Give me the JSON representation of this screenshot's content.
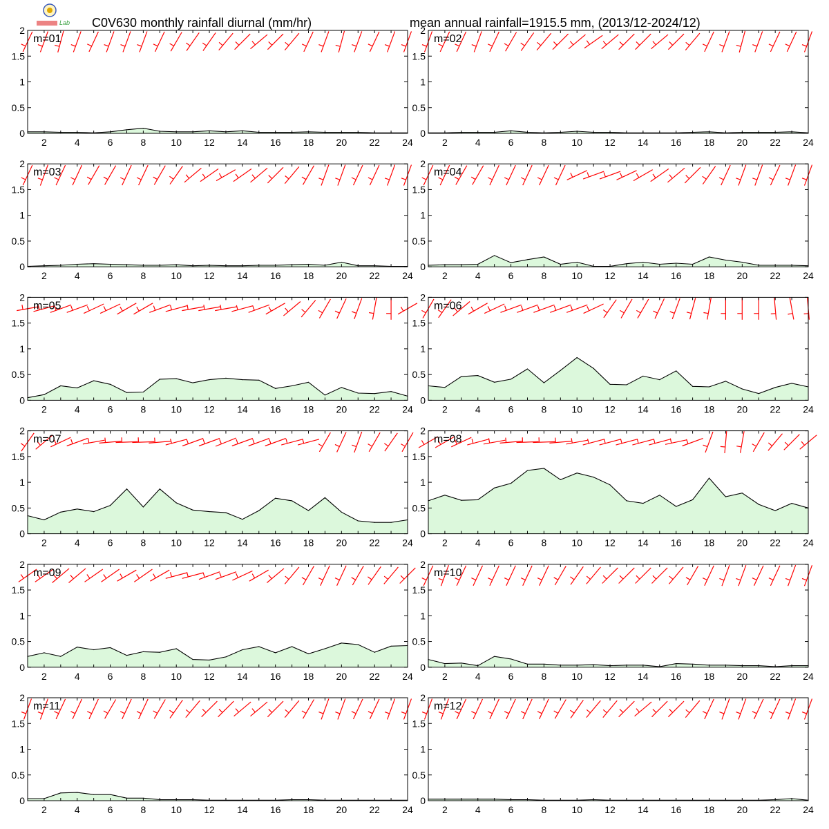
{
  "title_left": "C0V630 monthly rainfall diurnal (mm/hr)",
  "title_right": "mean annual rainfall=1915.5 mm, (2013/12-2024/12)",
  "logo": {
    "icon": "lab-seal-logo",
    "text": "Lab"
  },
  "chart_data": [
    {
      "type": "area",
      "label": "m=01",
      "x": [
        1,
        2,
        3,
        4,
        5,
        6,
        7,
        8,
        9,
        10,
        11,
        12,
        13,
        14,
        15,
        16,
        17,
        18,
        19,
        20,
        21,
        22,
        23,
        24
      ],
      "ylim": [
        0,
        2
      ],
      "values": [
        0.03,
        0.03,
        0.02,
        0.02,
        0.01,
        0.03,
        0.07,
        0.1,
        0.04,
        0.03,
        0.03,
        0.05,
        0.03,
        0.05,
        0.02,
        0.02,
        0.02,
        0.03,
        0.02,
        0.02,
        0.02,
        0.01,
        0.01,
        0.01
      ],
      "wind_dir": [
        205,
        200,
        195,
        200,
        205,
        200,
        200,
        200,
        205,
        210,
        215,
        215,
        220,
        225,
        230,
        225,
        220,
        205,
        200,
        195,
        200,
        205,
        200,
        200
      ]
    },
    {
      "type": "area",
      "label": "m=02",
      "x": [
        1,
        2,
        3,
        4,
        5,
        6,
        7,
        8,
        9,
        10,
        11,
        12,
        13,
        14,
        15,
        16,
        17,
        18,
        19,
        20,
        21,
        22,
        23,
        24
      ],
      "ylim": [
        0,
        2
      ],
      "values": [
        0.01,
        0.01,
        0.02,
        0.02,
        0.02,
        0.05,
        0.02,
        0.01,
        0.02,
        0.04,
        0.02,
        0.02,
        0.01,
        0.01,
        0.01,
        0.01,
        0.02,
        0.03,
        0.01,
        0.02,
        0.02,
        0.02,
        0.03,
        0.01
      ],
      "wind_dir": [
        200,
        205,
        205,
        200,
        205,
        210,
        215,
        220,
        225,
        230,
        235,
        230,
        225,
        225,
        230,
        225,
        220,
        205,
        200,
        195,
        200,
        205,
        205,
        200
      ]
    },
    {
      "type": "area",
      "label": "m=03",
      "x": [
        1,
        2,
        3,
        4,
        5,
        6,
        7,
        8,
        9,
        10,
        11,
        12,
        13,
        14,
        15,
        16,
        17,
        18,
        19,
        20,
        21,
        22,
        23,
        24
      ],
      "ylim": [
        0,
        2
      ],
      "values": [
        0.01,
        0.02,
        0.03,
        0.05,
        0.06,
        0.05,
        0.04,
        0.03,
        0.03,
        0.04,
        0.02,
        0.03,
        0.02,
        0.02,
        0.03,
        0.03,
        0.04,
        0.05,
        0.03,
        0.09,
        0.02,
        0.02,
        0.01,
        0.01
      ],
      "wind_dir": [
        205,
        200,
        205,
        205,
        210,
        210,
        205,
        205,
        210,
        215,
        230,
        235,
        240,
        235,
        230,
        225,
        220,
        210,
        200,
        200,
        205,
        205,
        200,
        200
      ]
    },
    {
      "type": "area",
      "label": "m=04",
      "x": [
        1,
        2,
        3,
        4,
        5,
        6,
        7,
        8,
        9,
        10,
        11,
        12,
        13,
        14,
        15,
        16,
        17,
        18,
        19,
        20,
        21,
        22,
        23,
        24
      ],
      "ylim": [
        0,
        2
      ],
      "values": [
        0.03,
        0.04,
        0.04,
        0.05,
        0.22,
        0.08,
        0.14,
        0.19,
        0.05,
        0.09,
        0.01,
        0.01,
        0.06,
        0.09,
        0.05,
        0.07,
        0.05,
        0.19,
        0.13,
        0.09,
        0.03,
        0.03,
        0.03,
        0.02
      ],
      "wind_dir": [
        205,
        205,
        210,
        210,
        205,
        205,
        205,
        205,
        205,
        245,
        250,
        250,
        245,
        240,
        235,
        230,
        225,
        215,
        205,
        200,
        200,
        205,
        200,
        200
      ]
    },
    {
      "type": "area",
      "label": "m=05",
      "x": [
        1,
        2,
        3,
        4,
        5,
        6,
        7,
        8,
        9,
        10,
        11,
        12,
        13,
        14,
        15,
        16,
        17,
        18,
        19,
        20,
        21,
        22,
        23,
        24
      ],
      "ylim": [
        0,
        2
      ],
      "values": [
        0.05,
        0.11,
        0.28,
        0.24,
        0.38,
        0.31,
        0.15,
        0.16,
        0.41,
        0.42,
        0.34,
        0.4,
        0.43,
        0.4,
        0.39,
        0.23,
        0.28,
        0.35,
        0.1,
        0.25,
        0.14,
        0.13,
        0.17,
        0.08
      ],
      "wind_dir": [
        260,
        255,
        250,
        250,
        245,
        245,
        240,
        240,
        250,
        255,
        260,
        260,
        260,
        255,
        250,
        240,
        230,
        220,
        210,
        205,
        200,
        190,
        180,
        240
      ]
    },
    {
      "type": "area",
      "label": "m=06",
      "x": [
        1,
        2,
        3,
        4,
        5,
        6,
        7,
        8,
        9,
        10,
        11,
        12,
        13,
        14,
        15,
        16,
        17,
        18,
        19,
        20,
        21,
        22,
        23,
        24
      ],
      "ylim": [
        0,
        2
      ],
      "values": [
        0.28,
        0.25,
        0.46,
        0.48,
        0.35,
        0.41,
        0.61,
        0.34,
        0.58,
        0.83,
        0.62,
        0.31,
        0.3,
        0.47,
        0.4,
        0.57,
        0.27,
        0.26,
        0.37,
        0.22,
        0.13,
        0.25,
        0.33,
        0.26
      ],
      "wind_dir": [
        210,
        215,
        230,
        240,
        245,
        250,
        250,
        250,
        250,
        250,
        245,
        215,
        210,
        210,
        205,
        200,
        195,
        190,
        180,
        180,
        180,
        175,
        170,
        175
      ]
    },
    {
      "type": "area",
      "label": "m=07",
      "x": [
        1,
        2,
        3,
        4,
        5,
        6,
        7,
        8,
        9,
        10,
        11,
        12,
        13,
        14,
        15,
        16,
        17,
        18,
        19,
        20,
        21,
        22,
        23,
        24
      ],
      "ylim": [
        0,
        2
      ],
      "values": [
        0.35,
        0.27,
        0.42,
        0.48,
        0.43,
        0.55,
        0.87,
        0.52,
        0.87,
        0.6,
        0.46,
        0.43,
        0.41,
        0.28,
        0.45,
        0.69,
        0.64,
        0.45,
        0.7,
        0.42,
        0.25,
        0.22,
        0.22,
        0.27
      ],
      "wind_dir": [
        215,
        230,
        245,
        250,
        260,
        265,
        268,
        268,
        265,
        255,
        250,
        250,
        248,
        250,
        250,
        250,
        255,
        255,
        210,
        205,
        200,
        210,
        215,
        210
      ]
    },
    {
      "type": "area",
      "label": "m=08",
      "x": [
        1,
        2,
        3,
        4,
        5,
        6,
        7,
        8,
        9,
        10,
        11,
        12,
        13,
        14,
        15,
        16,
        17,
        18,
        19,
        20,
        21,
        22,
        23,
        24
      ],
      "ylim": [
        0,
        2
      ],
      "values": [
        0.64,
        0.75,
        0.65,
        0.66,
        0.89,
        0.98,
        1.23,
        1.27,
        1.05,
        1.18,
        1.1,
        0.95,
        0.64,
        0.59,
        0.75,
        0.53,
        0.66,
        1.08,
        0.72,
        0.79,
        0.57,
        0.45,
        0.59,
        0.5
      ],
      "wind_dir": [
        240,
        240,
        245,
        255,
        260,
        265,
        268,
        268,
        265,
        260,
        255,
        255,
        255,
        255,
        255,
        258,
        250,
        200,
        185,
        190,
        210,
        220,
        225,
        230
      ]
    },
    {
      "type": "area",
      "label": "m=09",
      "x": [
        1,
        2,
        3,
        4,
        5,
        6,
        7,
        8,
        9,
        10,
        11,
        12,
        13,
        14,
        15,
        16,
        17,
        18,
        19,
        20,
        21,
        22,
        23,
        24
      ],
      "ylim": [
        0,
        2
      ],
      "values": [
        0.21,
        0.28,
        0.21,
        0.39,
        0.34,
        0.38,
        0.23,
        0.3,
        0.29,
        0.36,
        0.15,
        0.14,
        0.2,
        0.34,
        0.4,
        0.28,
        0.4,
        0.26,
        0.36,
        0.47,
        0.44,
        0.29,
        0.41,
        0.42
      ],
      "wind_dir": [
        235,
        235,
        230,
        230,
        235,
        235,
        240,
        235,
        240,
        255,
        255,
        250,
        250,
        245,
        240,
        230,
        220,
        210,
        205,
        205,
        210,
        215,
        220,
        225
      ]
    },
    {
      "type": "area",
      "label": "m=10",
      "x": [
        1,
        2,
        3,
        4,
        5,
        6,
        7,
        8,
        9,
        10,
        11,
        12,
        13,
        14,
        15,
        16,
        17,
        18,
        19,
        20,
        21,
        22,
        23,
        24
      ],
      "ylim": [
        0,
        2
      ],
      "values": [
        0.15,
        0.07,
        0.08,
        0.03,
        0.21,
        0.16,
        0.06,
        0.06,
        0.04,
        0.04,
        0.05,
        0.03,
        0.04,
        0.04,
        0.01,
        0.07,
        0.06,
        0.04,
        0.04,
        0.03,
        0.03,
        0.01,
        0.03,
        0.03
      ],
      "wind_dir": [
        205,
        200,
        205,
        205,
        205,
        205,
        205,
        205,
        210,
        215,
        220,
        225,
        225,
        225,
        225,
        220,
        210,
        205,
        200,
        200,
        205,
        205,
        200,
        200
      ]
    },
    {
      "type": "area",
      "label": "m=11",
      "x": [
        1,
        2,
        3,
        4,
        5,
        6,
        7,
        8,
        9,
        10,
        11,
        12,
        13,
        14,
        15,
        16,
        17,
        18,
        19,
        20,
        21,
        22,
        23,
        24
      ],
      "ylim": [
        0,
        2
      ],
      "values": [
        0.04,
        0.04,
        0.15,
        0.16,
        0.12,
        0.12,
        0.05,
        0.05,
        0.02,
        0.02,
        0.02,
        0.01,
        0.01,
        0.01,
        0.01,
        0.01,
        0.02,
        0.02,
        0.01,
        0.01,
        0.01,
        0.01,
        0.01,
        0.01
      ],
      "wind_dir": [
        200,
        200,
        205,
        205,
        205,
        210,
        205,
        205,
        210,
        215,
        220,
        225,
        225,
        230,
        230,
        225,
        220,
        210,
        200,
        200,
        205,
        205,
        200,
        200
      ]
    },
    {
      "type": "area",
      "label": "m=12",
      "x": [
        1,
        2,
        3,
        4,
        5,
        6,
        7,
        8,
        9,
        10,
        11,
        12,
        13,
        14,
        15,
        16,
        17,
        18,
        19,
        20,
        21,
        22,
        23,
        24
      ],
      "ylim": [
        0,
        2
      ],
      "values": [
        0.03,
        0.03,
        0.03,
        0.03,
        0.03,
        0.02,
        0.02,
        0.01,
        0.01,
        0.01,
        0.02,
        0.01,
        0.01,
        0.01,
        0.01,
        0.01,
        0.01,
        0.01,
        0.01,
        0.01,
        0.01,
        0.02,
        0.04,
        0.01
      ],
      "wind_dir": [
        200,
        200,
        205,
        205,
        205,
        205,
        205,
        205,
        210,
        215,
        220,
        220,
        225,
        230,
        225,
        225,
        220,
        205,
        200,
        200,
        205,
        205,
        200,
        200
      ]
    }
  ],
  "axes": {
    "x_ticks": [
      2,
      4,
      6,
      8,
      10,
      12,
      14,
      16,
      18,
      20,
      22,
      24
    ],
    "y_ticks": [
      0,
      0.5,
      1,
      1.5,
      2
    ],
    "y_tick_labels": [
      "0",
      "0.5",
      "1",
      "1.5",
      "2"
    ],
    "xlim": [
      1,
      24
    ],
    "ylim": [
      0,
      2
    ],
    "line_color": "#000000",
    "fill_color": "#dcf8dc",
    "barb_color": "#ff0000"
  }
}
